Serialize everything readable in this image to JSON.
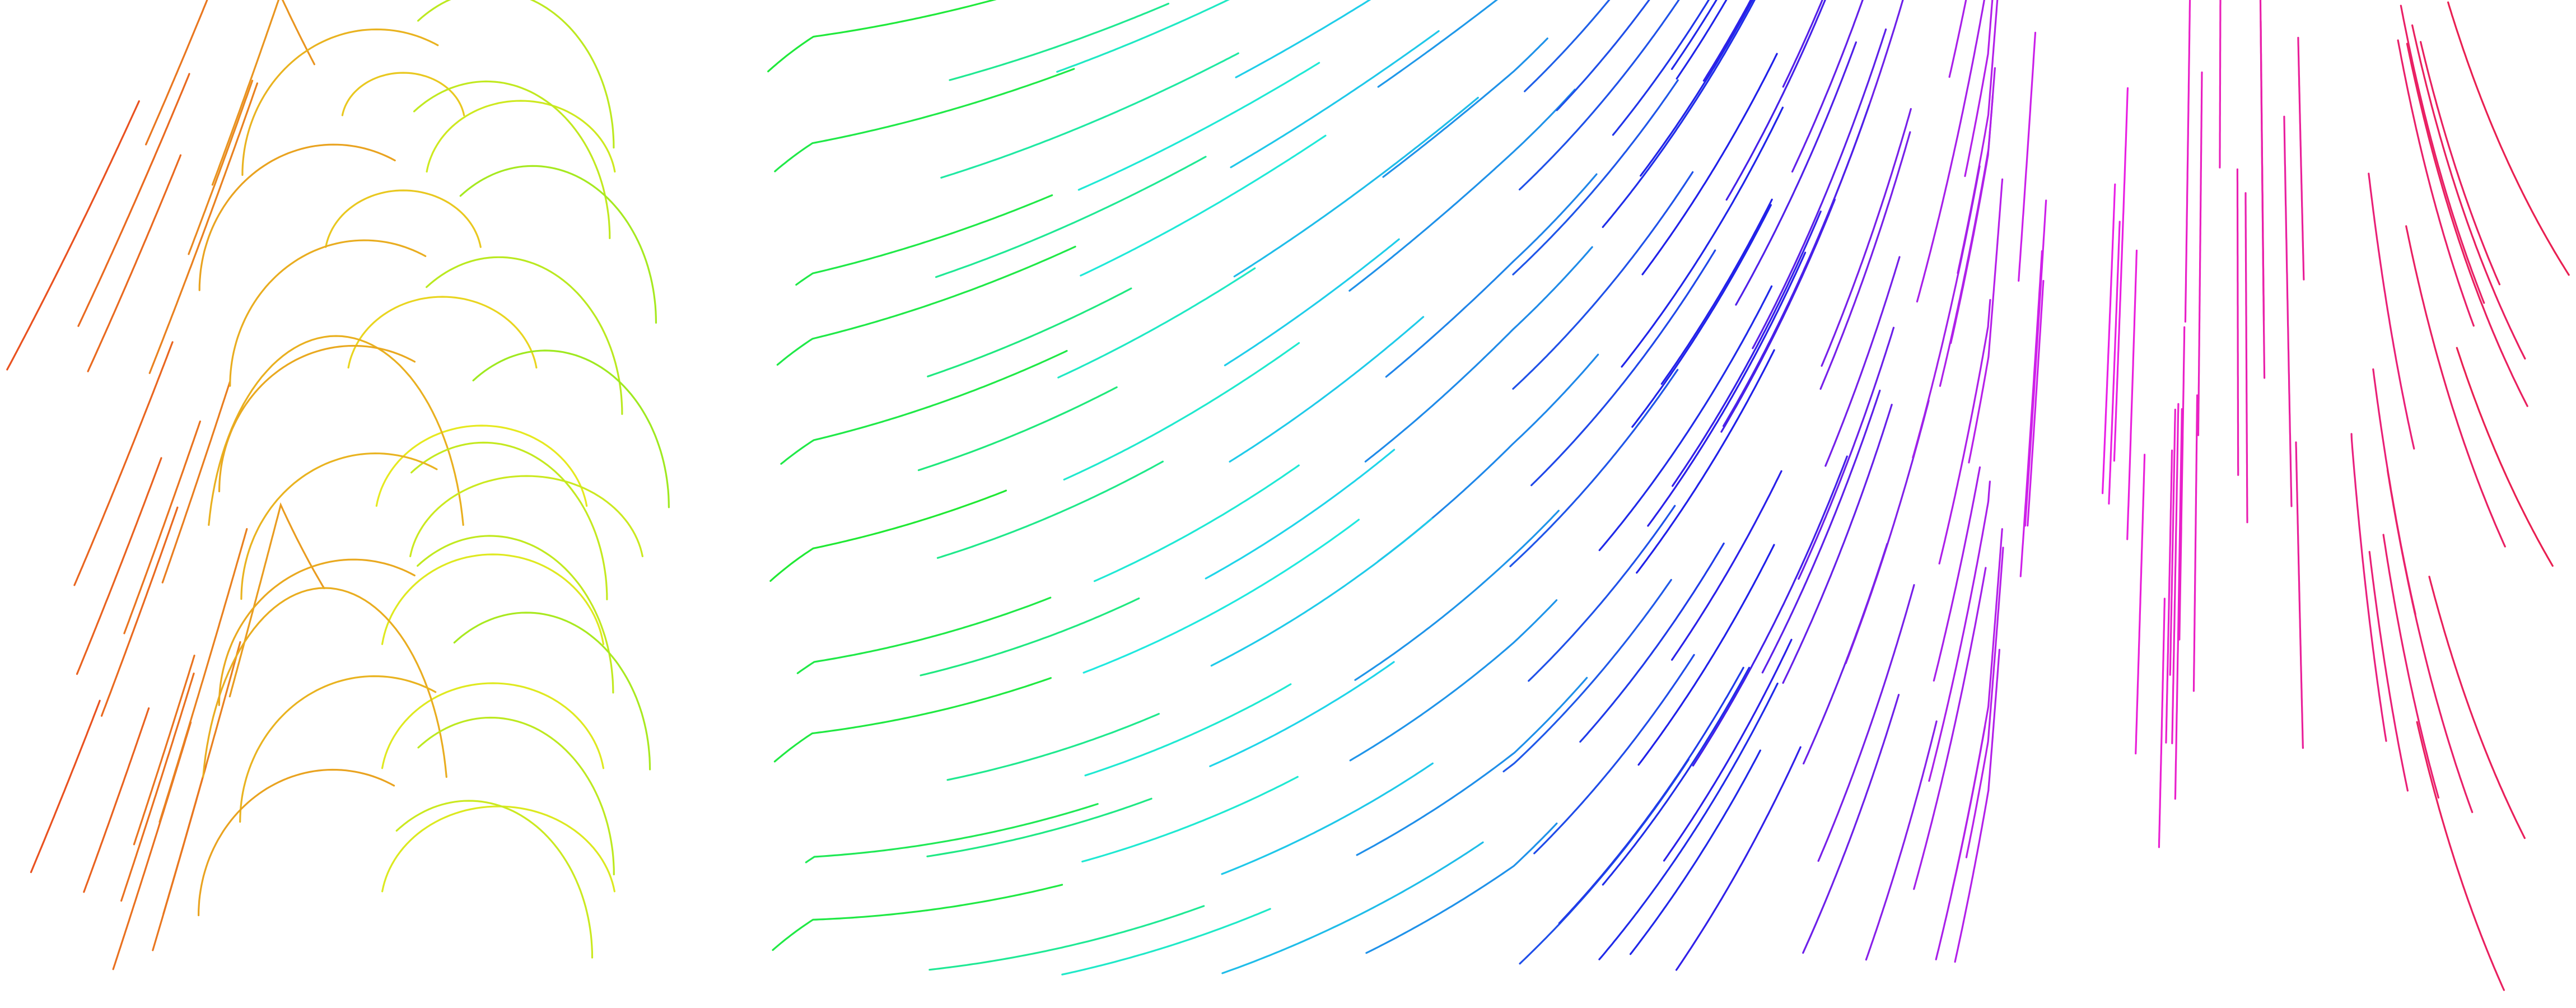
{
  "artwork": {
    "background": "#ffffff",
    "style": "flow-field streamlines",
    "palette": [
      "#ee4422",
      "#f0901a",
      "#f2e21e",
      "#8ee81e",
      "#2edc3e",
      "#22e2c8",
      "#1e7ee6",
      "#3a36d2",
      "#c63ae8",
      "#e2327a"
    ]
  }
}
